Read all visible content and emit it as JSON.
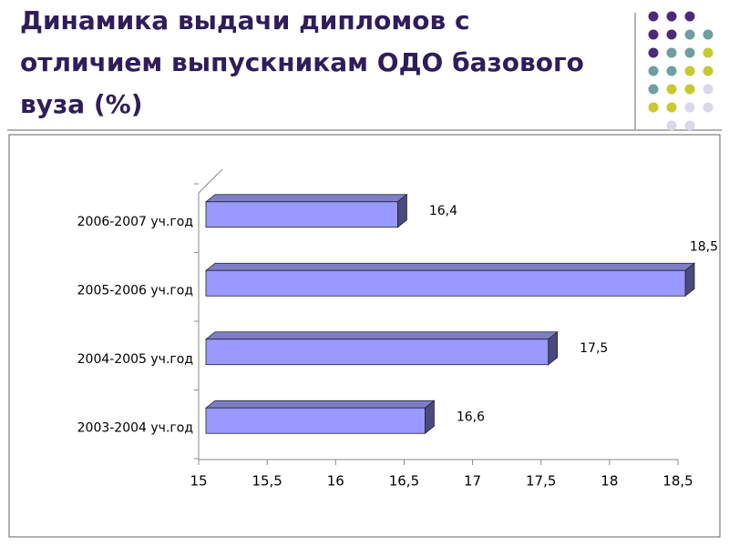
{
  "chart_data": {
    "type": "bar3d-horizontal",
    "title": "Динамика выдачи дипломов с отличием выпускникам ОДО базового вуза (%)",
    "categories": [
      "2006-2007 уч.год",
      "2005-2006 уч.год",
      "2004-2005 уч.год",
      "2003-2004 уч.год"
    ],
    "values": [
      16.4,
      18.5,
      17.5,
      16.6
    ],
    "value_labels": [
      "16,4",
      "18,5",
      "17,5",
      "16,6"
    ],
    "color": "#9999ff",
    "xlim": [
      15,
      18.5
    ],
    "xticks": [
      15,
      {
        "value": 15.5,
        "label": "15,5"
      },
      16,
      {
        "value": 16.5,
        "label": "16,5"
      },
      17,
      {
        "value": 17.5,
        "label": "17,5"
      },
      18,
      {
        "value": 18.5,
        "label": "18,5"
      }
    ]
  }
}
